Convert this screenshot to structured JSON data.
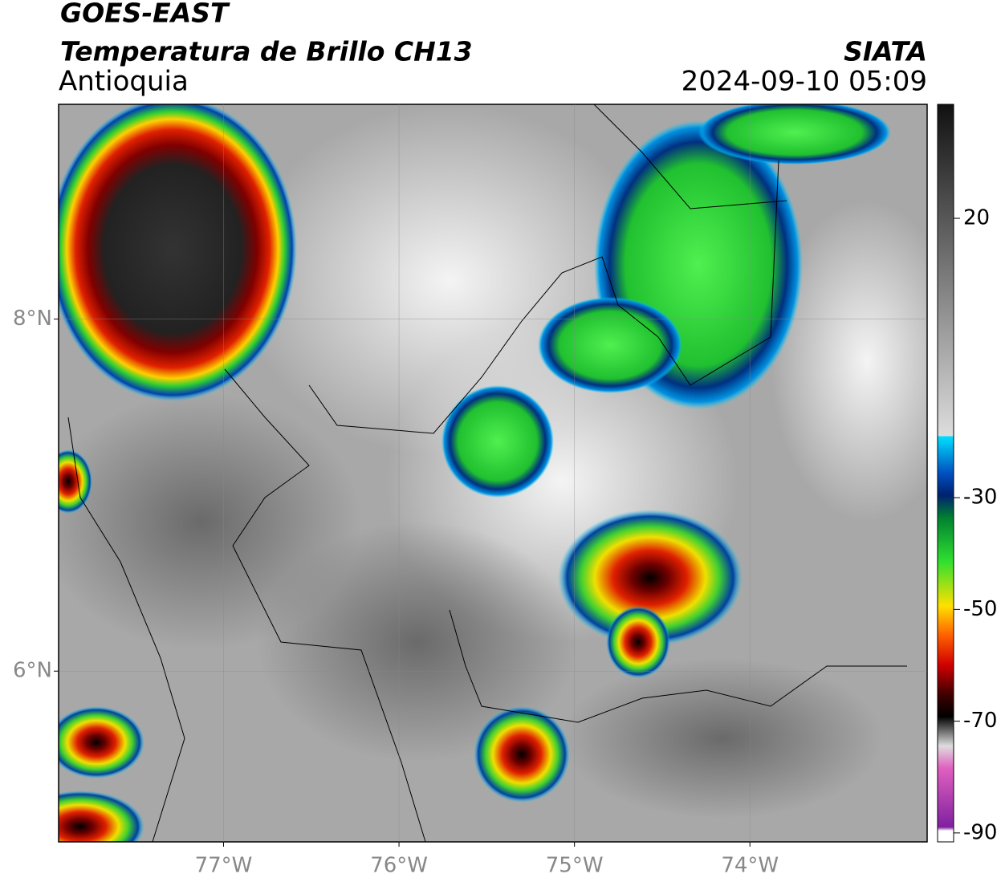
{
  "header": {
    "title": "GOES-EAST",
    "subtitle": "Temperatura de Brillo CH13",
    "region": "Antioquia",
    "source": "SIATA",
    "datetime": "2024-09-10 05:09"
  },
  "map": {
    "xlim": [
      -77.94,
      -72.99
    ],
    "ylim": [
      5.03,
      9.22
    ],
    "xticks": [
      {
        "value": -77,
        "label": "77°W"
      },
      {
        "value": -76,
        "label": "76°W"
      },
      {
        "value": -75,
        "label": "75°W"
      },
      {
        "value": -74,
        "label": "74°W"
      }
    ],
    "yticks": [
      {
        "value": 6,
        "label": "6°N"
      },
      {
        "value": 8,
        "label": "8°N"
      }
    ],
    "grid": true
  },
  "colorbar": {
    "lim": [
      -91.6,
      40.4
    ],
    "ticks": [
      20,
      -30,
      -50,
      -70,
      -90
    ]
  }
}
